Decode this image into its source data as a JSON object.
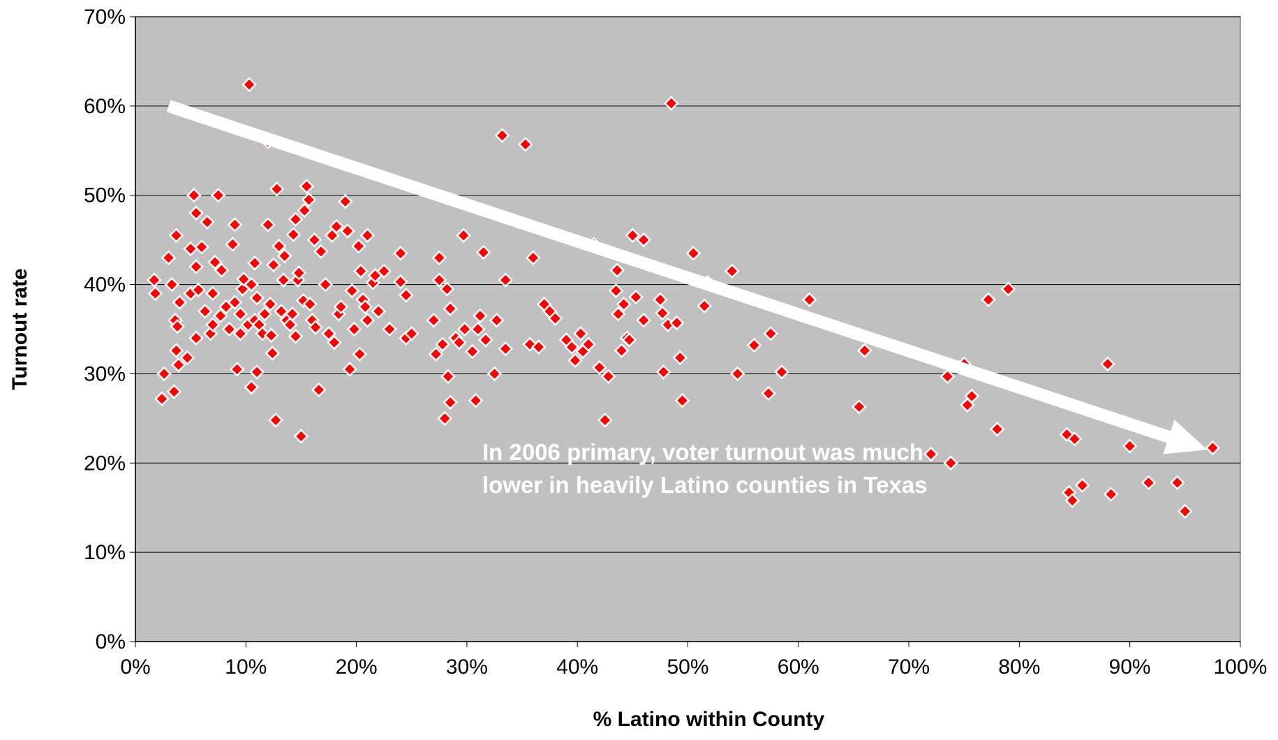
{
  "chart_data": {
    "type": "scatter",
    "title": "",
    "xlabel": "% Latino within County",
    "ylabel": "Turnout rate",
    "xlim": [
      0,
      1
    ],
    "ylim": [
      0,
      0.7
    ],
    "x_ticks": [
      "0%",
      "10%",
      "20%",
      "30%",
      "40%",
      "50%",
      "60%",
      "70%",
      "80%",
      "90%",
      "100%"
    ],
    "y_ticks": [
      "0%",
      "10%",
      "20%",
      "30%",
      "40%",
      "50%",
      "60%",
      "70%"
    ],
    "grid": "horizontal",
    "legend": "none",
    "colors": {
      "plot_background": "#c0c0c0",
      "marker": "#ff0000",
      "marker_edge": "#ffffff",
      "arrow": "#ffffff",
      "annotation": "#ffffff"
    },
    "annotation": {
      "lines": [
        "In 2006 primary, voter turnout was much",
        "lower in heavily Latino counties in Texas"
      ]
    },
    "trend_arrow": {
      "from": [
        0.03,
        0.6
      ],
      "to": [
        0.97,
        0.215
      ]
    },
    "series": [
      {
        "marker": "diamond",
        "points": [
          [
            0.017,
            0.405
          ],
          [
            0.018,
            0.39
          ],
          [
            0.024,
            0.272
          ],
          [
            0.026,
            0.3
          ],
          [
            0.03,
            0.43
          ],
          [
            0.033,
            0.4
          ],
          [
            0.035,
            0.28
          ],
          [
            0.037,
            0.455
          ],
          [
            0.036,
            0.36
          ],
          [
            0.037,
            0.326
          ],
          [
            0.038,
            0.353
          ],
          [
            0.039,
            0.31
          ],
          [
            0.04,
            0.38
          ],
          [
            0.047,
            0.318
          ],
          [
            0.05,
            0.44
          ],
          [
            0.05,
            0.39
          ],
          [
            0.053,
            0.5
          ],
          [
            0.055,
            0.48
          ],
          [
            0.055,
            0.42
          ],
          [
            0.055,
            0.34
          ],
          [
            0.057,
            0.394
          ],
          [
            0.06,
            0.442
          ],
          [
            0.063,
            0.37
          ],
          [
            0.065,
            0.47
          ],
          [
            0.068,
            0.345
          ],
          [
            0.07,
            0.355
          ],
          [
            0.07,
            0.39
          ],
          [
            0.072,
            0.425
          ],
          [
            0.075,
            0.5
          ],
          [
            0.077,
            0.365
          ],
          [
            0.078,
            0.416
          ],
          [
            0.082,
            0.375
          ],
          [
            0.085,
            0.35
          ],
          [
            0.088,
            0.445
          ],
          [
            0.09,
            0.467
          ],
          [
            0.09,
            0.38
          ],
          [
            0.092,
            0.305
          ],
          [
            0.095,
            0.367
          ],
          [
            0.095,
            0.345
          ],
          [
            0.097,
            0.395
          ],
          [
            0.098,
            0.406
          ],
          [
            0.102,
            0.355
          ],
          [
            0.103,
            0.624
          ],
          [
            0.105,
            0.4
          ],
          [
            0.105,
            0.285
          ],
          [
            0.108,
            0.424
          ],
          [
            0.108,
            0.36
          ],
          [
            0.11,
            0.385
          ],
          [
            0.11,
            0.302
          ],
          [
            0.112,
            0.355
          ],
          [
            0.115,
            0.345
          ],
          [
            0.117,
            0.367
          ],
          [
            0.12,
            0.467
          ],
          [
            0.12,
            0.56
          ],
          [
            0.122,
            0.378
          ],
          [
            0.123,
            0.343
          ],
          [
            0.124,
            0.323
          ],
          [
            0.125,
            0.422
          ],
          [
            0.127,
            0.248
          ],
          [
            0.128,
            0.507
          ],
          [
            0.13,
            0.443
          ],
          [
            0.132,
            0.37
          ],
          [
            0.134,
            0.405
          ],
          [
            0.135,
            0.432
          ],
          [
            0.137,
            0.36
          ],
          [
            0.14,
            0.355
          ],
          [
            0.142,
            0.367
          ],
          [
            0.143,
            0.456
          ],
          [
            0.145,
            0.473
          ],
          [
            0.145,
            0.342
          ],
          [
            0.147,
            0.405
          ],
          [
            0.148,
            0.413
          ],
          [
            0.15,
            0.23
          ],
          [
            0.152,
            0.382
          ],
          [
            0.153,
            0.483
          ],
          [
            0.155,
            0.51
          ],
          [
            0.157,
            0.495
          ],
          [
            0.158,
            0.378
          ],
          [
            0.16,
            0.36
          ],
          [
            0.162,
            0.45
          ],
          [
            0.163,
            0.352
          ],
          [
            0.166,
            0.282
          ],
          [
            0.168,
            0.437
          ],
          [
            0.172,
            0.4
          ],
          [
            0.175,
            0.345
          ],
          [
            0.178,
            0.455
          ],
          [
            0.18,
            0.335
          ],
          [
            0.182,
            0.465
          ],
          [
            0.184,
            0.367
          ],
          [
            0.186,
            0.375
          ],
          [
            0.19,
            0.493
          ],
          [
            0.192,
            0.46
          ],
          [
            0.194,
            0.305
          ],
          [
            0.196,
            0.393
          ],
          [
            0.198,
            0.35
          ],
          [
            0.202,
            0.443
          ],
          [
            0.203,
            0.322
          ],
          [
            0.204,
            0.415
          ],
          [
            0.206,
            0.383
          ],
          [
            0.208,
            0.375
          ],
          [
            0.21,
            0.455
          ],
          [
            0.21,
            0.36
          ],
          [
            0.215,
            0.402
          ],
          [
            0.217,
            0.41
          ],
          [
            0.22,
            0.37
          ],
          [
            0.225,
            0.415
          ],
          [
            0.23,
            0.35
          ],
          [
            0.24,
            0.435
          ],
          [
            0.24,
            0.403
          ],
          [
            0.245,
            0.388
          ],
          [
            0.245,
            0.34
          ],
          [
            0.25,
            0.345
          ],
          [
            0.27,
            0.36
          ],
          [
            0.272,
            0.322
          ],
          [
            0.275,
            0.43
          ],
          [
            0.275,
            0.405
          ],
          [
            0.278,
            0.333
          ],
          [
            0.28,
            0.25
          ],
          [
            0.282,
            0.395
          ],
          [
            0.283,
            0.297
          ],
          [
            0.285,
            0.268
          ],
          [
            0.285,
            0.373
          ],
          [
            0.29,
            0.34
          ],
          [
            0.293,
            0.335
          ],
          [
            0.297,
            0.455
          ],
          [
            0.298,
            0.35
          ],
          [
            0.305,
            0.325
          ],
          [
            0.308,
            0.27
          ],
          [
            0.31,
            0.35
          ],
          [
            0.312,
            0.365
          ],
          [
            0.315,
            0.436
          ],
          [
            0.317,
            0.338
          ],
          [
            0.325,
            0.3
          ],
          [
            0.327,
            0.36
          ],
          [
            0.332,
            0.567
          ],
          [
            0.335,
            0.405
          ],
          [
            0.335,
            0.328
          ],
          [
            0.353,
            0.557
          ],
          [
            0.357,
            0.333
          ],
          [
            0.36,
            0.43
          ],
          [
            0.365,
            0.33
          ],
          [
            0.37,
            0.378
          ],
          [
            0.375,
            0.37
          ],
          [
            0.38,
            0.362
          ],
          [
            0.39,
            0.338
          ],
          [
            0.395,
            0.33
          ],
          [
            0.398,
            0.315
          ],
          [
            0.403,
            0.345
          ],
          [
            0.405,
            0.325
          ],
          [
            0.41,
            0.333
          ],
          [
            0.415,
            0.445
          ],
          [
            0.42,
            0.307
          ],
          [
            0.425,
            0.248
          ],
          [
            0.428,
            0.297
          ],
          [
            0.435,
            0.393
          ],
          [
            0.436,
            0.416
          ],
          [
            0.437,
            0.367
          ],
          [
            0.44,
            0.326
          ],
          [
            0.442,
            0.378
          ],
          [
            0.445,
            0.34
          ],
          [
            0.447,
            0.338
          ],
          [
            0.45,
            0.455
          ],
          [
            0.453,
            0.386
          ],
          [
            0.46,
            0.45
          ],
          [
            0.46,
            0.36
          ],
          [
            0.475,
            0.383
          ],
          [
            0.477,
            0.368
          ],
          [
            0.478,
            0.302
          ],
          [
            0.482,
            0.355
          ],
          [
            0.485,
            0.603
          ],
          [
            0.49,
            0.357
          ],
          [
            0.493,
            0.318
          ],
          [
            0.495,
            0.27
          ],
          [
            0.505,
            0.435
          ],
          [
            0.515,
            0.376
          ],
          [
            0.518,
            0.402
          ],
          [
            0.54,
            0.415
          ],
          [
            0.545,
            0.3
          ],
          [
            0.56,
            0.332
          ],
          [
            0.573,
            0.278
          ],
          [
            0.575,
            0.345
          ],
          [
            0.585,
            0.302
          ],
          [
            0.61,
            0.383
          ],
          [
            0.655,
            0.263
          ],
          [
            0.66,
            0.326
          ],
          [
            0.72,
            0.21
          ],
          [
            0.735,
            0.297
          ],
          [
            0.738,
            0.2
          ],
          [
            0.75,
            0.311
          ],
          [
            0.753,
            0.265
          ],
          [
            0.757,
            0.275
          ],
          [
            0.772,
            0.383
          ],
          [
            0.78,
            0.238
          ],
          [
            0.79,
            0.395
          ],
          [
            0.843,
            0.232
          ],
          [
            0.845,
            0.167
          ],
          [
            0.848,
            0.158
          ],
          [
            0.85,
            0.227
          ],
          [
            0.857,
            0.175
          ],
          [
            0.88,
            0.311
          ],
          [
            0.883,
            0.165
          ],
          [
            0.9,
            0.219
          ],
          [
            0.917,
            0.178
          ],
          [
            0.943,
            0.178
          ],
          [
            0.95,
            0.146
          ],
          [
            0.975,
            0.217
          ]
        ]
      }
    ]
  }
}
